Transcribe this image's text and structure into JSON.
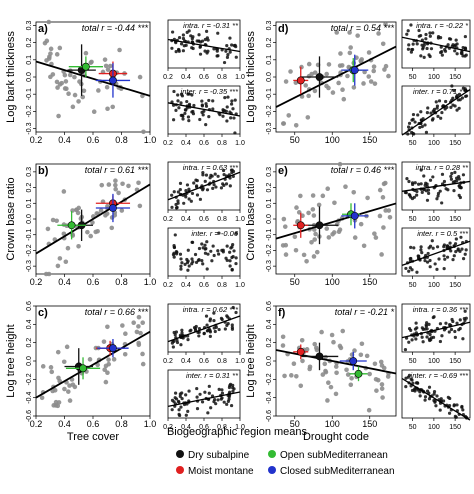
{
  "figure": {
    "footer_title": "Biogeographic region means",
    "legend": [
      {
        "label": "Dry subalpine",
        "color": "#111111"
      },
      {
        "label": "Moist montane",
        "color": "#e02020"
      },
      {
        "label": "Open subMediterranean",
        "color": "#33bb33"
      },
      {
        "label": "Closed subMediterranean",
        "color": "#2233cc"
      }
    ],
    "point_color": "#8c8c8c",
    "line_color": "#000000"
  },
  "chart_data": [
    {
      "id": "a",
      "type": "scatter",
      "panel_letter": "a)",
      "ylabel": "Log bark thickness",
      "xlabel": "",
      "stat": "total r = -0.44 ***",
      "xlim": [
        0.2,
        1.0
      ],
      "xticks": [
        0.2,
        0.4,
        0.6,
        0.8,
        1.0
      ],
      "ylim": [
        -0.32,
        0.32
      ],
      "yticks": [
        -0.3,
        -0.2,
        -0.1,
        0.0,
        0.1,
        0.2,
        0.3
      ],
      "trend": {
        "slope": -0.25,
        "intercept": 0.14
      },
      "n_points": 60,
      "noise": 0.11,
      "seed": 11,
      "group_means": [
        {
          "group": "Dry subalpine",
          "x": 0.52,
          "y": 0.04,
          "ex": 0.1,
          "ey": 0.15
        },
        {
          "group": "Moist montane",
          "x": 0.74,
          "y": 0.02,
          "ex": 0.1,
          "ey": 0.07
        },
        {
          "group": "Open subMediterranean",
          "x": 0.55,
          "y": 0.06,
          "ex": 0.12,
          "ey": 0.06
        },
        {
          "group": "Closed subMediterranean",
          "x": 0.74,
          "y": -0.02,
          "ex": 0.12,
          "ey": 0.1
        }
      ]
    },
    {
      "id": "a_intra",
      "type": "scatter",
      "stat": "intra. r = -0.31 **",
      "xlim": [
        0.2,
        1.0
      ],
      "xticks": [
        0.2,
        0.4,
        0.6,
        0.8,
        1.0
      ],
      "ylim": [
        -0.32,
        0.32
      ],
      "trend": {
        "slope": -0.2,
        "intercept": 0.1
      },
      "n_points": 70,
      "noise": 0.1,
      "seed": 12
    },
    {
      "id": "a_inter",
      "type": "scatter",
      "stat": "inter. r = -0.35 ***",
      "xlim": [
        0.2,
        1.0
      ],
      "xticks": [
        0.2,
        0.4,
        0.6,
        0.8,
        1.0
      ],
      "ylim": [
        -0.32,
        0.32
      ],
      "trend": {
        "slope": -0.22,
        "intercept": 0.14
      },
      "n_points": 70,
      "noise": 0.1,
      "seed": 13
    },
    {
      "id": "b",
      "type": "scatter",
      "panel_letter": "b)",
      "ylabel": "Crown base ratio",
      "xlabel": "",
      "stat": "total r = 0.61 ***",
      "xlim": [
        0.2,
        1.0
      ],
      "xticks": [
        0.2,
        0.4,
        0.6,
        0.8,
        1.0
      ],
      "ylim": [
        -0.35,
        0.35
      ],
      "yticks": [
        -0.3,
        -0.2,
        -0.1,
        0.0,
        0.1,
        0.2,
        0.3
      ],
      "trend": {
        "slope": 0.55,
        "intercept": -0.33
      },
      "n_points": 60,
      "noise": 0.1,
      "seed": 21,
      "group_means": [
        {
          "group": "Dry subalpine",
          "x": 0.52,
          "y": -0.04,
          "ex": 0.08,
          "ey": 0.1
        },
        {
          "group": "Moist montane",
          "x": 0.74,
          "y": 0.1,
          "ex": 0.12,
          "ey": 0.05
        },
        {
          "group": "Open subMediterranean",
          "x": 0.45,
          "y": -0.04,
          "ex": 0.1,
          "ey": 0.09
        },
        {
          "group": "Closed subMediterranean",
          "x": 0.74,
          "y": 0.07,
          "ex": 0.12,
          "ey": 0.09
        }
      ]
    },
    {
      "id": "b_intra",
      "type": "scatter",
      "stat": "intra. r = 0.63 ***",
      "xlim": [
        0.2,
        1.0
      ],
      "xticks": [
        0.2,
        0.4,
        0.6,
        0.8,
        1.0
      ],
      "ylim": [
        -0.35,
        0.35
      ],
      "trend": {
        "slope": 0.5,
        "intercept": -0.3
      },
      "n_points": 70,
      "noise": 0.09,
      "seed": 22
    },
    {
      "id": "b_inter",
      "type": "scatter",
      "stat": "inter. r = -0.06",
      "xlim": [
        0.2,
        1.0
      ],
      "xticks": [
        0.2,
        0.4,
        0.6,
        0.8,
        1.0
      ],
      "ylim": [
        -0.35,
        0.35
      ],
      "trend": null,
      "n_points": 70,
      "noise": 0.12,
      "seed": 23
    },
    {
      "id": "c",
      "type": "scatter",
      "panel_letter": "c)",
      "ylabel": "Log tree height",
      "xlabel": "Tree cover",
      "stat": "total r = 0.66 ***",
      "xlim": [
        0.2,
        1.0
      ],
      "xticks": [
        0.2,
        0.4,
        0.6,
        0.8,
        1.0
      ],
      "ylim": [
        -0.6,
        0.6
      ],
      "yticks": [
        -0.6,
        -0.4,
        -0.2,
        0.0,
        0.2,
        0.4,
        0.6
      ],
      "trend": {
        "slope": 0.9,
        "intercept": -0.58
      },
      "n_points": 60,
      "noise": 0.17,
      "seed": 31,
      "group_means": [
        {
          "group": "Dry subalpine",
          "x": 0.5,
          "y": -0.06,
          "ex": 0.1,
          "ey": 0.2
        },
        {
          "group": "Moist montane",
          "x": 0.72,
          "y": 0.14,
          "ex": 0.1,
          "ey": 0.08
        },
        {
          "group": "Open subMediterranean",
          "x": 0.53,
          "y": -0.08,
          "ex": 0.12,
          "ey": 0.12
        },
        {
          "group": "Closed subMediterranean",
          "x": 0.74,
          "y": 0.14,
          "ex": 0.11,
          "ey": 0.1
        }
      ]
    },
    {
      "id": "c_intra",
      "type": "scatter",
      "stat": "intra. r = 0.62 ***",
      "xlim": [
        0.2,
        1.0
      ],
      "xticks": [
        0.2,
        0.4,
        0.6,
        0.8,
        1.0
      ],
      "ylim": [
        -0.6,
        0.6
      ],
      "trend": {
        "slope": 0.8,
        "intercept": -0.5
      },
      "n_points": 70,
      "noise": 0.15,
      "seed": 32
    },
    {
      "id": "c_inter",
      "type": "scatter",
      "stat": "inter. r = 0.31 **",
      "xlim": [
        0.2,
        1.0
      ],
      "xticks": [
        0.2,
        0.4,
        0.6,
        0.8,
        1.0
      ],
      "ylim": [
        -0.6,
        0.6
      ],
      "trend": {
        "slope": 0.45,
        "intercept": -0.4
      },
      "n_points": 70,
      "noise": 0.16,
      "seed": 33
    },
    {
      "id": "d",
      "type": "scatter",
      "panel_letter": "d)",
      "ylabel": "Log bark thickness",
      "xlabel": "",
      "stat": "total r = 0.54 ***",
      "xlim": [
        25,
        185
      ],
      "xticks": [
        50,
        100,
        150
      ],
      "ylim": [
        -0.32,
        0.32
      ],
      "yticks": [
        -0.3,
        -0.2,
        -0.1,
        0.0,
        0.1,
        0.2,
        0.3
      ],
      "trend": {
        "slope": 0.0022,
        "intercept": -0.23
      },
      "n_points": 65,
      "noise": 0.1,
      "seed": 41,
      "group_means": [
        {
          "group": "Dry subalpine",
          "x": 83,
          "y": 0.0,
          "ex": 25,
          "ey": 0.12
        },
        {
          "group": "Moist montane",
          "x": 58,
          "y": -0.02,
          "ex": 10,
          "ey": 0.08
        },
        {
          "group": "Open subMediterranean",
          "x": 128,
          "y": 0.04,
          "ex": 12,
          "ey": 0.07
        },
        {
          "group": "Closed subMediterranean",
          "x": 130,
          "y": 0.04,
          "ex": 18,
          "ey": 0.09
        }
      ]
    },
    {
      "id": "d_intra",
      "type": "scatter",
      "stat": "intra. r = -0.22 *",
      "xlim": [
        25,
        185
      ],
      "xticks": [
        50,
        100,
        150
      ],
      "ylim": [
        -0.32,
        0.32
      ],
      "trend": {
        "slope": -0.0012,
        "intercept": 0.12
      },
      "n_points": 70,
      "noise": 0.1,
      "seed": 42
    },
    {
      "id": "d_inter",
      "type": "scatter",
      "stat": "inter. r = 0.71 ***",
      "xlim": [
        25,
        185
      ],
      "xticks": [
        50,
        100,
        150
      ],
      "ylim": [
        -0.32,
        0.32
      ],
      "trend": {
        "slope": 0.0038,
        "intercept": -0.43
      },
      "n_points": 70,
      "noise": 0.08,
      "seed": 43
    },
    {
      "id": "e",
      "type": "scatter",
      "panel_letter": "e)",
      "ylabel": "Crown base ratio",
      "xlabel": "",
      "stat": "total r = 0.46 ***",
      "xlim": [
        25,
        185
      ],
      "xticks": [
        50,
        100,
        150
      ],
      "ylim": [
        -0.35,
        0.35
      ],
      "yticks": [
        -0.3,
        -0.2,
        -0.1,
        0.0,
        0.1,
        0.2,
        0.3
      ],
      "trend": {
        "slope": 0.0014,
        "intercept": -0.16
      },
      "n_points": 65,
      "noise": 0.12,
      "seed": 51,
      "group_means": [
        {
          "group": "Dry subalpine",
          "x": 83,
          "y": -0.04,
          "ex": 25,
          "ey": 0.12
        },
        {
          "group": "Moist montane",
          "x": 58,
          "y": -0.04,
          "ex": 10,
          "ey": 0.08
        },
        {
          "group": "Open subMediterranean",
          "x": 125,
          "y": 0.03,
          "ex": 12,
          "ey": 0.07
        },
        {
          "group": "Closed subMediterranean",
          "x": 130,
          "y": 0.02,
          "ex": 18,
          "ey": 0.08
        }
      ]
    },
    {
      "id": "e_intra",
      "type": "scatter",
      "stat": "intra. r = 0.28 **",
      "xlim": [
        25,
        185
      ],
      "xticks": [
        50,
        100,
        150
      ],
      "ylim": [
        -0.35,
        0.35
      ],
      "trend": {
        "slope": 0.0009,
        "intercept": -0.1
      },
      "n_points": 70,
      "noise": 0.1,
      "seed": 52
    },
    {
      "id": "e_inter",
      "type": "scatter",
      "stat": "inter. r = 0.5 ***",
      "xlim": [
        25,
        185
      ],
      "xticks": [
        50,
        100,
        150
      ],
      "ylim": [
        -0.35,
        0.35
      ],
      "trend": {
        "slope": 0.0022,
        "intercept": -0.25
      },
      "n_points": 70,
      "noise": 0.1,
      "seed": 53
    },
    {
      "id": "f",
      "type": "scatter",
      "panel_letter": "f)",
      "ylabel": "Log tree height",
      "xlabel": "Drought code",
      "stat": "total r = -0.21 *",
      "xlim": [
        25,
        185
      ],
      "xticks": [
        50,
        100,
        150
      ],
      "ylim": [
        -0.6,
        0.6
      ],
      "yticks": [
        -0.6,
        -0.4,
        -0.2,
        0.0,
        0.2,
        0.4,
        0.6
      ],
      "trend": {
        "slope": -0.0016,
        "intercept": 0.16
      },
      "n_points": 65,
      "noise": 0.2,
      "seed": 61,
      "group_means": [
        {
          "group": "Dry subalpine",
          "x": 83,
          "y": 0.05,
          "ex": 25,
          "ey": 0.15
        },
        {
          "group": "Moist montane",
          "x": 58,
          "y": 0.1,
          "ex": 10,
          "ey": 0.08
        },
        {
          "group": "Open subMediterranean",
          "x": 135,
          "y": -0.14,
          "ex": 12,
          "ey": 0.08
        },
        {
          "group": "Closed subMediterranean",
          "x": 128,
          "y": 0.0,
          "ex": 18,
          "ey": 0.1
        }
      ]
    },
    {
      "id": "f_intra",
      "type": "scatter",
      "stat": "intra. r = 0.36 ***",
      "xlim": [
        25,
        185
      ],
      "xticks": [
        50,
        100,
        150
      ],
      "ylim": [
        -0.6,
        0.6
      ],
      "trend": {
        "slope": 0.0024,
        "intercept": -0.3
      },
      "n_points": 70,
      "noise": 0.15,
      "seed": 62
    },
    {
      "id": "f_inter",
      "type": "scatter",
      "stat": "inter. r = -0.69 ***",
      "xlim": [
        25,
        185
      ],
      "xticks": [
        50,
        100,
        150
      ],
      "ylim": [
        -0.6,
        0.6
      ],
      "trend": {
        "slope": -0.0065,
        "intercept": 0.55
      },
      "n_points": 70,
      "noise": 0.12,
      "seed": 63
    }
  ]
}
